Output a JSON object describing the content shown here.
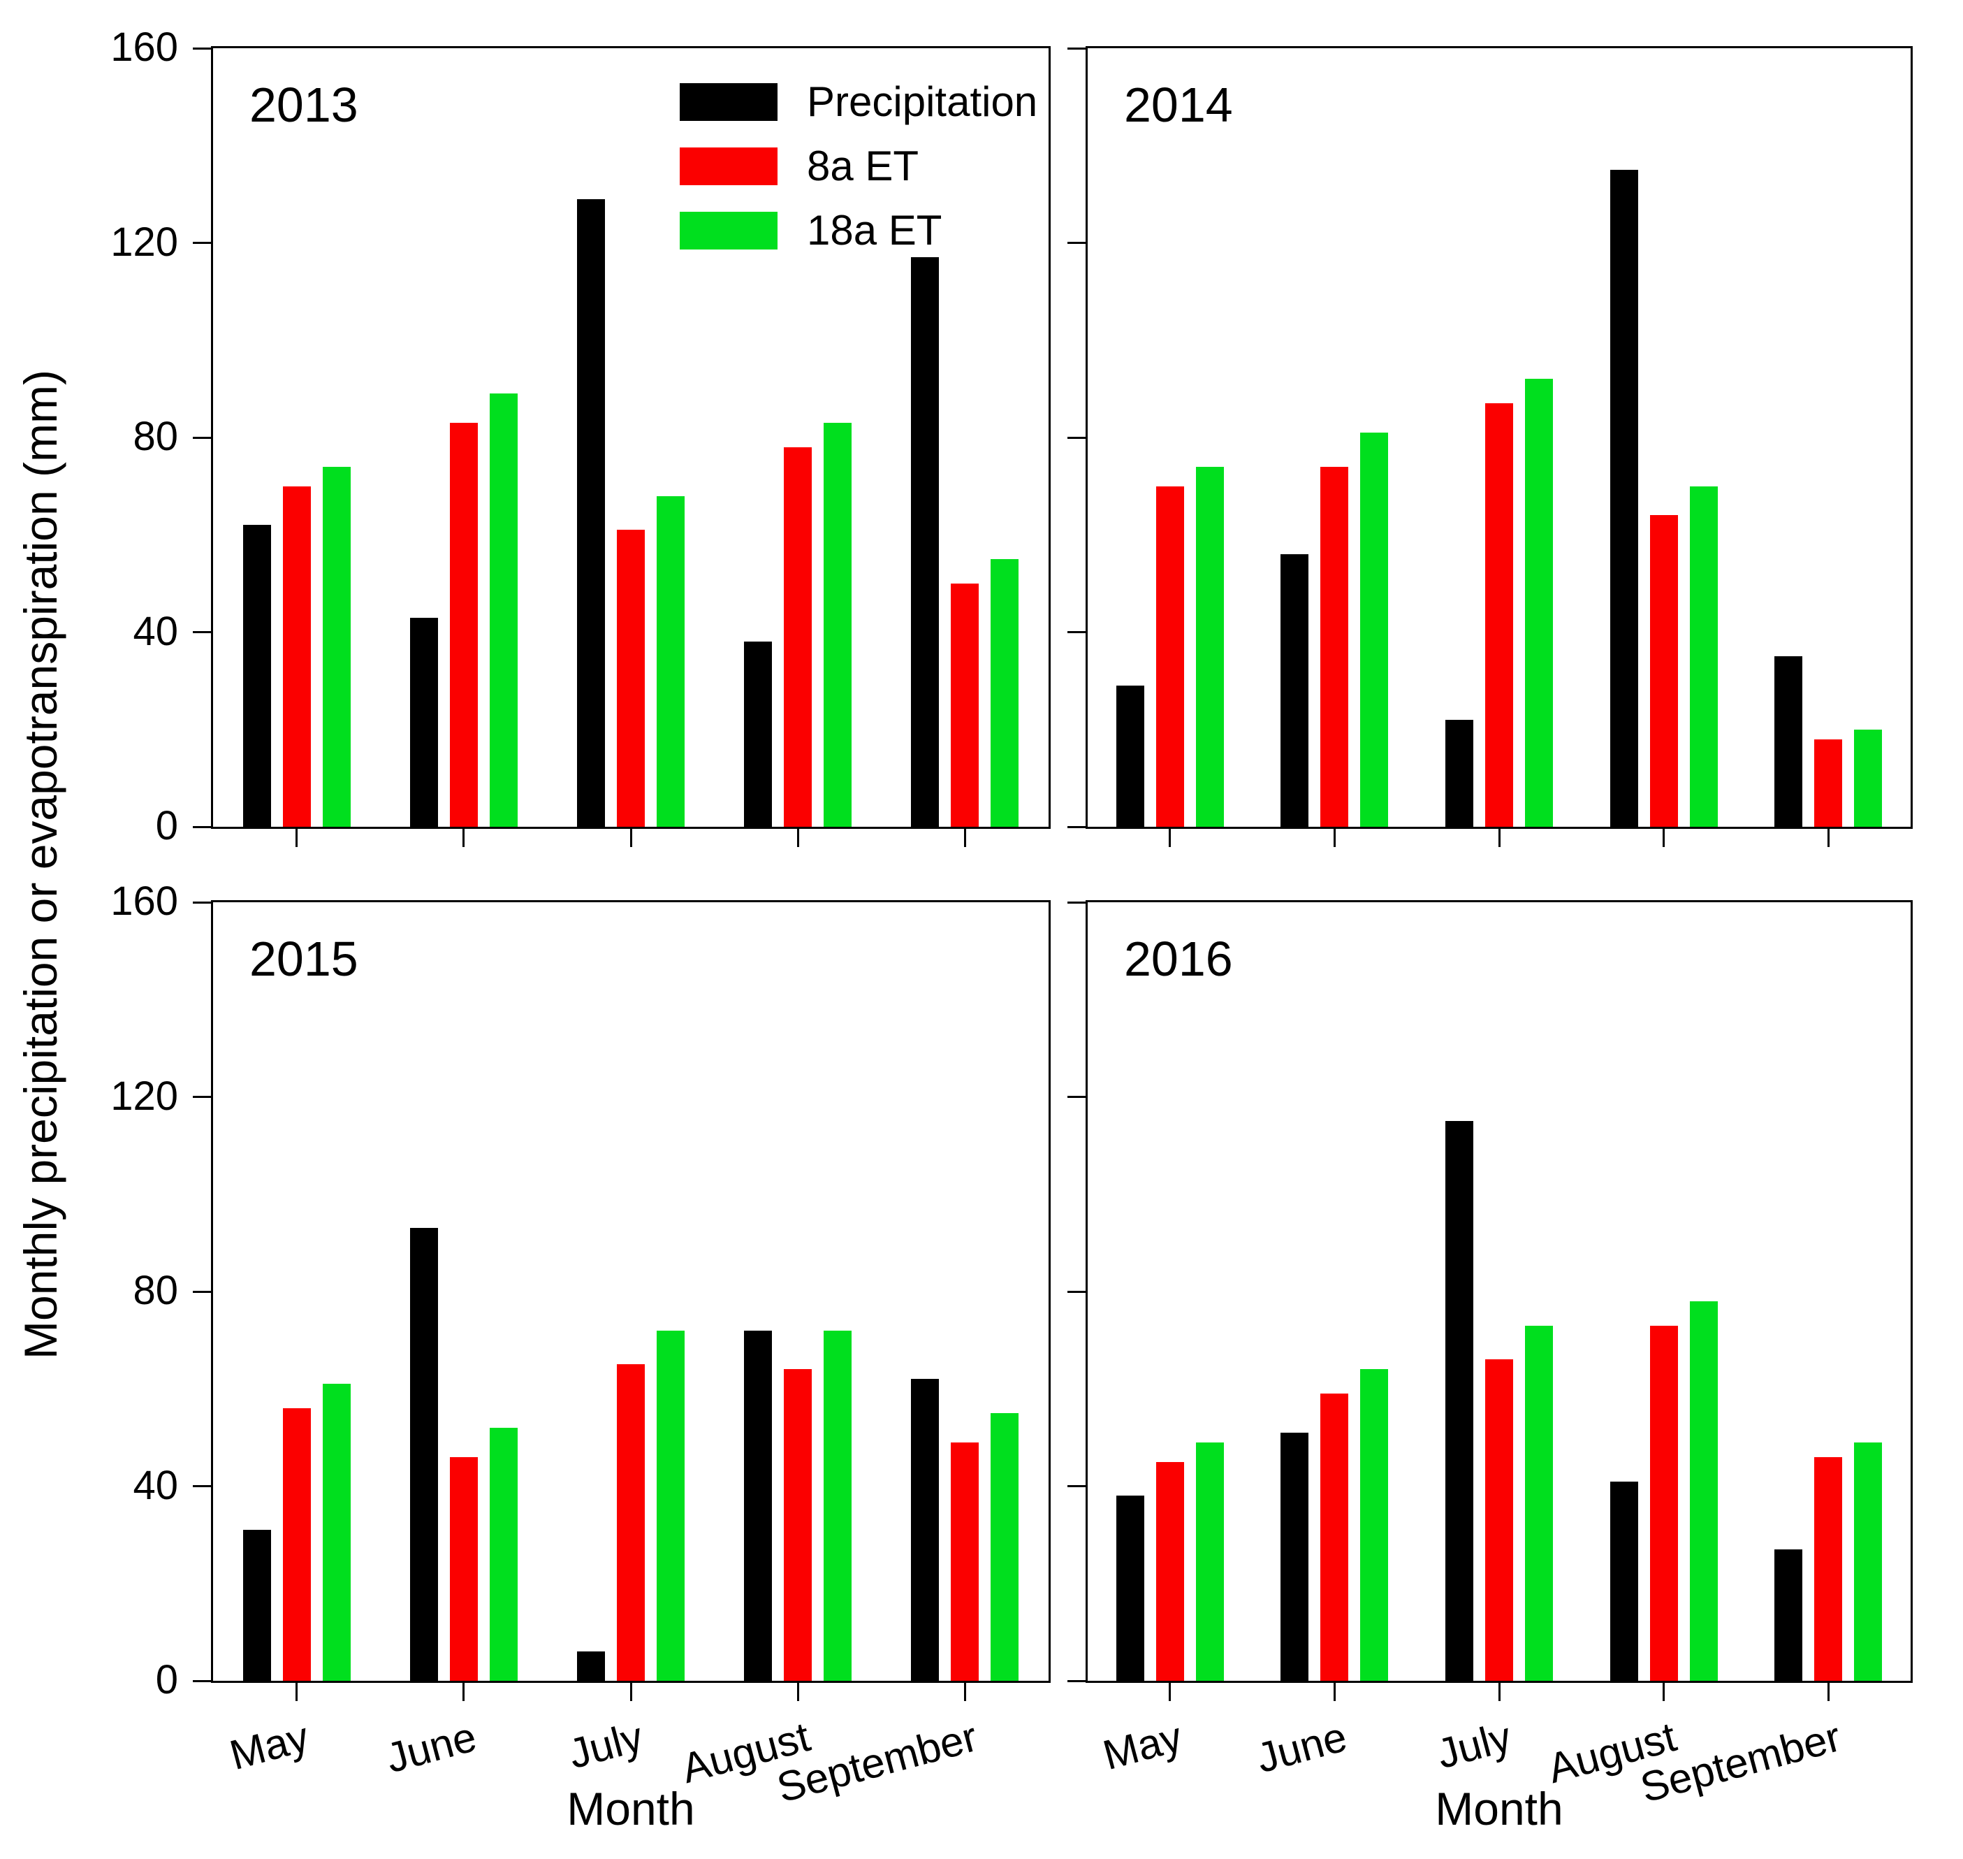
{
  "axes": {
    "y_title": "Monthly precipitation or evapotranspiration (mm)",
    "x_title": "Month",
    "y_ticks": [
      0,
      40,
      80,
      120,
      160
    ],
    "y_range": [
      0,
      160
    ],
    "categories": [
      "May",
      "June",
      "July",
      "August",
      "September"
    ]
  },
  "legend": {
    "position": "inside top-right of 2013 panel",
    "items": [
      {
        "label": "Precipitation",
        "color": "#000000"
      },
      {
        "label": "8a ET",
        "color": "#fb0000"
      },
      {
        "label": "18a ET",
        "color": "#00df1e"
      }
    ]
  },
  "chart_data": [
    {
      "type": "bar",
      "title": "2013",
      "xlabel": "Month",
      "ylabel": "Monthly precipitation or evapotranspiration (mm)",
      "categories": [
        "May",
        "June",
        "July",
        "August",
        "September"
      ],
      "ylim": [
        0,
        160
      ],
      "yticks": [
        0,
        40,
        80,
        120,
        160
      ],
      "grid": false,
      "series": [
        {
          "name": "Precipitation",
          "color": "#000000",
          "values": [
            62,
            43,
            129,
            38,
            117
          ]
        },
        {
          "name": "8a ET",
          "color": "#fb0000",
          "values": [
            70,
            83,
            61,
            78,
            50
          ]
        },
        {
          "name": "18a ET",
          "color": "#00df1e",
          "values": [
            74,
            89,
            68,
            83,
            55
          ]
        }
      ]
    },
    {
      "type": "bar",
      "title": "2014",
      "xlabel": "Month",
      "ylabel": "Monthly precipitation or evapotranspiration (mm)",
      "categories": [
        "May",
        "June",
        "July",
        "August",
        "September"
      ],
      "ylim": [
        0,
        160
      ],
      "yticks": [
        0,
        40,
        80,
        120,
        160
      ],
      "grid": false,
      "series": [
        {
          "name": "Precipitation",
          "color": "#000000",
          "values": [
            29,
            56,
            22,
            135,
            35
          ]
        },
        {
          "name": "8a ET",
          "color": "#fb0000",
          "values": [
            70,
            74,
            87,
            64,
            18
          ]
        },
        {
          "name": "18a ET",
          "color": "#00df1e",
          "values": [
            74,
            81,
            92,
            70,
            20
          ]
        }
      ]
    },
    {
      "type": "bar",
      "title": "2015",
      "xlabel": "Month",
      "ylabel": "Monthly precipitation or evapotranspiration (mm)",
      "categories": [
        "May",
        "June",
        "July",
        "August",
        "September"
      ],
      "ylim": [
        0,
        160
      ],
      "yticks": [
        0,
        40,
        80,
        120,
        160
      ],
      "grid": false,
      "series": [
        {
          "name": "Precipitation",
          "color": "#000000",
          "values": [
            31,
            93,
            6,
            72,
            62
          ]
        },
        {
          "name": "8a ET",
          "color": "#fb0000",
          "values": [
            56,
            46,
            65,
            64,
            49
          ]
        },
        {
          "name": "18a ET",
          "color": "#00df1e",
          "values": [
            61,
            52,
            72,
            72,
            55
          ]
        }
      ]
    },
    {
      "type": "bar",
      "title": "2016",
      "xlabel": "Month",
      "ylabel": "Monthly precipitation or evapotranspiration (mm)",
      "categories": [
        "May",
        "June",
        "July",
        "August",
        "September"
      ],
      "ylim": [
        0,
        160
      ],
      "yticks": [
        0,
        40,
        80,
        120,
        160
      ],
      "grid": false,
      "series": [
        {
          "name": "Precipitation",
          "color": "#000000",
          "values": [
            38,
            51,
            115,
            41,
            27
          ]
        },
        {
          "name": "8a ET",
          "color": "#fb0000",
          "values": [
            45,
            59,
            66,
            73,
            46
          ]
        },
        {
          "name": "18a ET",
          "color": "#00df1e",
          "values": [
            49,
            64,
            73,
            78,
            49
          ]
        }
      ]
    }
  ]
}
